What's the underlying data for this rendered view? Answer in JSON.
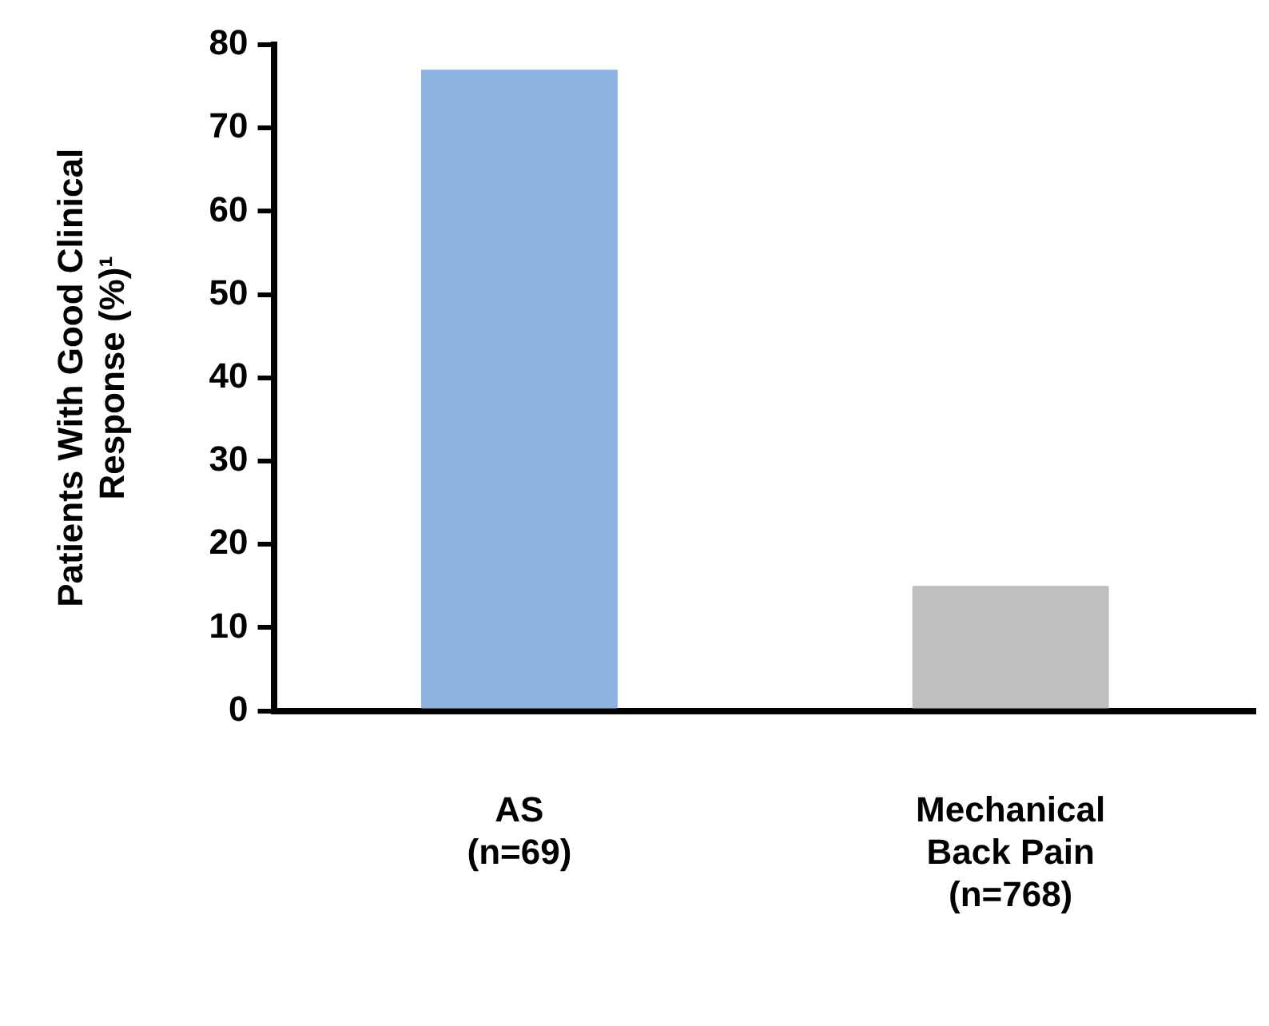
{
  "chart_data": {
    "type": "bar",
    "ylabel": "Patients With Good Clinical Response (%)¹",
    "categories": [
      "AS (n=69)",
      "Mechanical Back Pain (n=768)"
    ],
    "values": [
      77,
      15
    ],
    "colors": [
      "#8db3e2",
      "#bfbfbf"
    ],
    "ylim": [
      0,
      80
    ],
    "yticks": [
      0,
      10,
      20,
      30,
      40,
      50,
      60,
      70,
      80
    ],
    "grid": false,
    "legend": false
  }
}
